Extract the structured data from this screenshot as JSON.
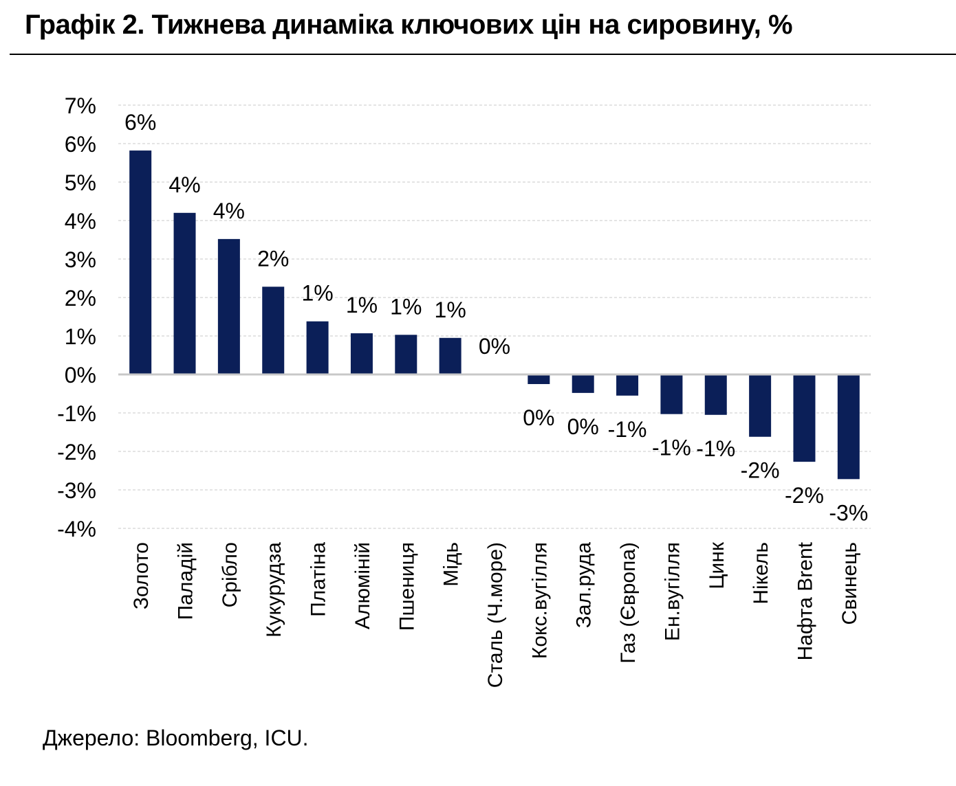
{
  "title": "Графік 2. Тижнева динаміка ключових цін на сировину, %",
  "source": "Джерело: Bloomberg, ICU.",
  "colors": {
    "bar": "#0b1f58",
    "grid": "#c8c8c8",
    "zero_line": "#c8c8c8"
  },
  "chart_data": {
    "type": "bar",
    "title": "Графік 2. Тижнева динаміка ключових цін на сировину, %",
    "xlabel": "",
    "ylabel": "",
    "ylim": [
      -4,
      7
    ],
    "yticks": [
      7,
      6,
      5,
      4,
      3,
      2,
      1,
      0,
      -1,
      -2,
      -3,
      -4
    ],
    "ytick_labels": [
      "7%",
      "6%",
      "5%",
      "4%",
      "3%",
      "2%",
      "1%",
      "0%",
      "-1%",
      "-2%",
      "-3%",
      "-4%"
    ],
    "grid": true,
    "categories": [
      "Золото",
      "Паладій",
      "Срібло",
      "Кукурудза",
      "Платіна",
      "Алюміній",
      "Пшениця",
      "Мідь",
      "Сталь (Ч.море)",
      "Кокс.вугілля",
      "Зал.руда",
      "Газ (Європа)",
      "Ен.вугілля",
      "Цинк",
      "Нікель",
      "Нафта Brent",
      "Свинець"
    ],
    "values": [
      5.82,
      4.2,
      3.52,
      2.28,
      1.38,
      1.07,
      1.03,
      0.95,
      0.0,
      -0.25,
      -0.48,
      -0.55,
      -1.03,
      -1.05,
      -1.62,
      -2.27,
      -2.72
    ],
    "data_labels": [
      "6%",
      "4%",
      "4%",
      "2%",
      "1%",
      "1%",
      "1%",
      "1%",
      "0%",
      "0%",
      "0%",
      "-1%",
      "-1%",
      "-1%",
      "-2%",
      "-2%",
      "-3%"
    ]
  }
}
